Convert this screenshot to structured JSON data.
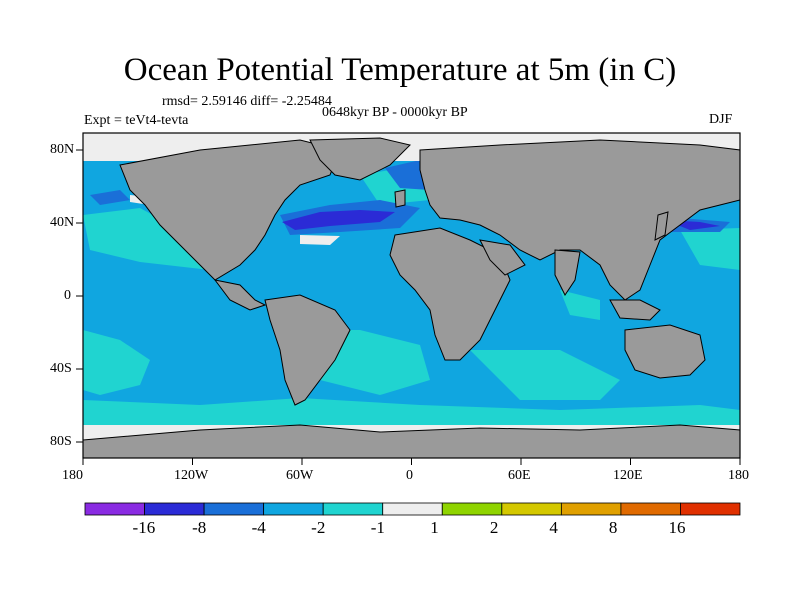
{
  "title": "Ocean Potential Temperature at 5m (in C)",
  "stats": "rmsd= 2.59146 diff= -2.25484",
  "experiment": "Expt = teVt4-tevta",
  "period": "0648kyr BP - 0000kyr BP",
  "season": "DJF",
  "axes": {
    "x_ticks": [
      "180",
      "120W",
      "60W",
      "0",
      "60E",
      "120E",
      "180"
    ],
    "y_ticks": [
      "80N",
      "40N",
      "0",
      "40S",
      "80S"
    ]
  },
  "colorbar": {
    "colors": [
      "#8a2be2",
      "#2b2bd6",
      "#1a6fd8",
      "#10a6e0",
      "#20d4d0",
      "#eeeeee",
      "#8fd400",
      "#d4c800",
      "#e0a000",
      "#e06a00",
      "#e03000"
    ],
    "labels": [
      "-16",
      "-8",
      "-4",
      "-2",
      "-1",
      "1",
      "2",
      "4",
      "8",
      "16"
    ]
  },
  "colors": {
    "land": "#9a9a9a",
    "ocean_main": "#10a6e0",
    "ocean_light": "#20d4d0",
    "ocean_dark": "#1a6fd8",
    "anomaly_strong": "#2b2bd6",
    "ice": "#eeeeee"
  }
}
